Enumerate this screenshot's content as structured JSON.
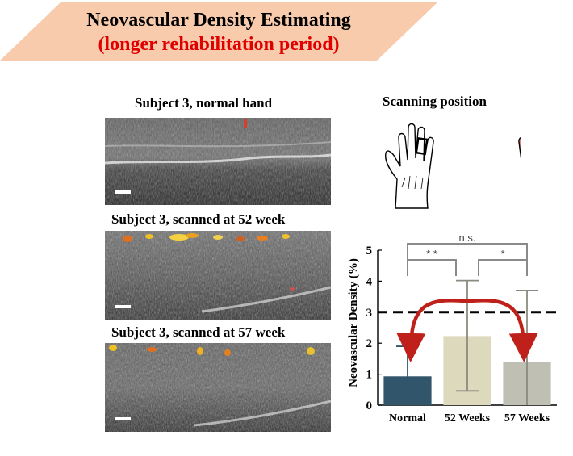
{
  "banner": {
    "title": "Neovascular Density Estimating",
    "subtitle": "(longer rehabilitation period)",
    "bg_color": "#f8cbad"
  },
  "panels": [
    {
      "caption": "Subject 3, normal hand"
    },
    {
      "caption": "Subject 3, scanned at 52 week"
    },
    {
      "caption": "Subject 3, scanned at 57 week"
    }
  ],
  "scanning_position": {
    "title": "Scanning  position",
    "left_hand_color": "#ffffff",
    "right_hand_color": "#f08080"
  },
  "chart_data": {
    "type": "bar",
    "categories": [
      "Normal",
      "52 Weeks",
      "57 Weeks"
    ],
    "values": [
      0.93,
      2.23,
      1.38
    ],
    "error_upper": [
      1.9,
      4.02,
      3.7
    ],
    "error_lower": [
      0.0,
      0.46,
      0.0
    ],
    "colors": [
      "#31556b",
      "#ddd9bd",
      "#bfc0b3"
    ],
    "ylabel": "Neovascular Density (%)",
    "ylim": [
      0,
      5
    ],
    "yticks": [
      0,
      1,
      2,
      3,
      4,
      5
    ],
    "threshold_line": 3,
    "significance": [
      {
        "from": "Normal",
        "to": "52 Weeks",
        "label": "* *"
      },
      {
        "from": "52 Weeks",
        "to": "57 Weeks",
        "label": "*"
      },
      {
        "from": "Normal",
        "to": "57 Weeks",
        "label": "n.s."
      }
    ]
  }
}
